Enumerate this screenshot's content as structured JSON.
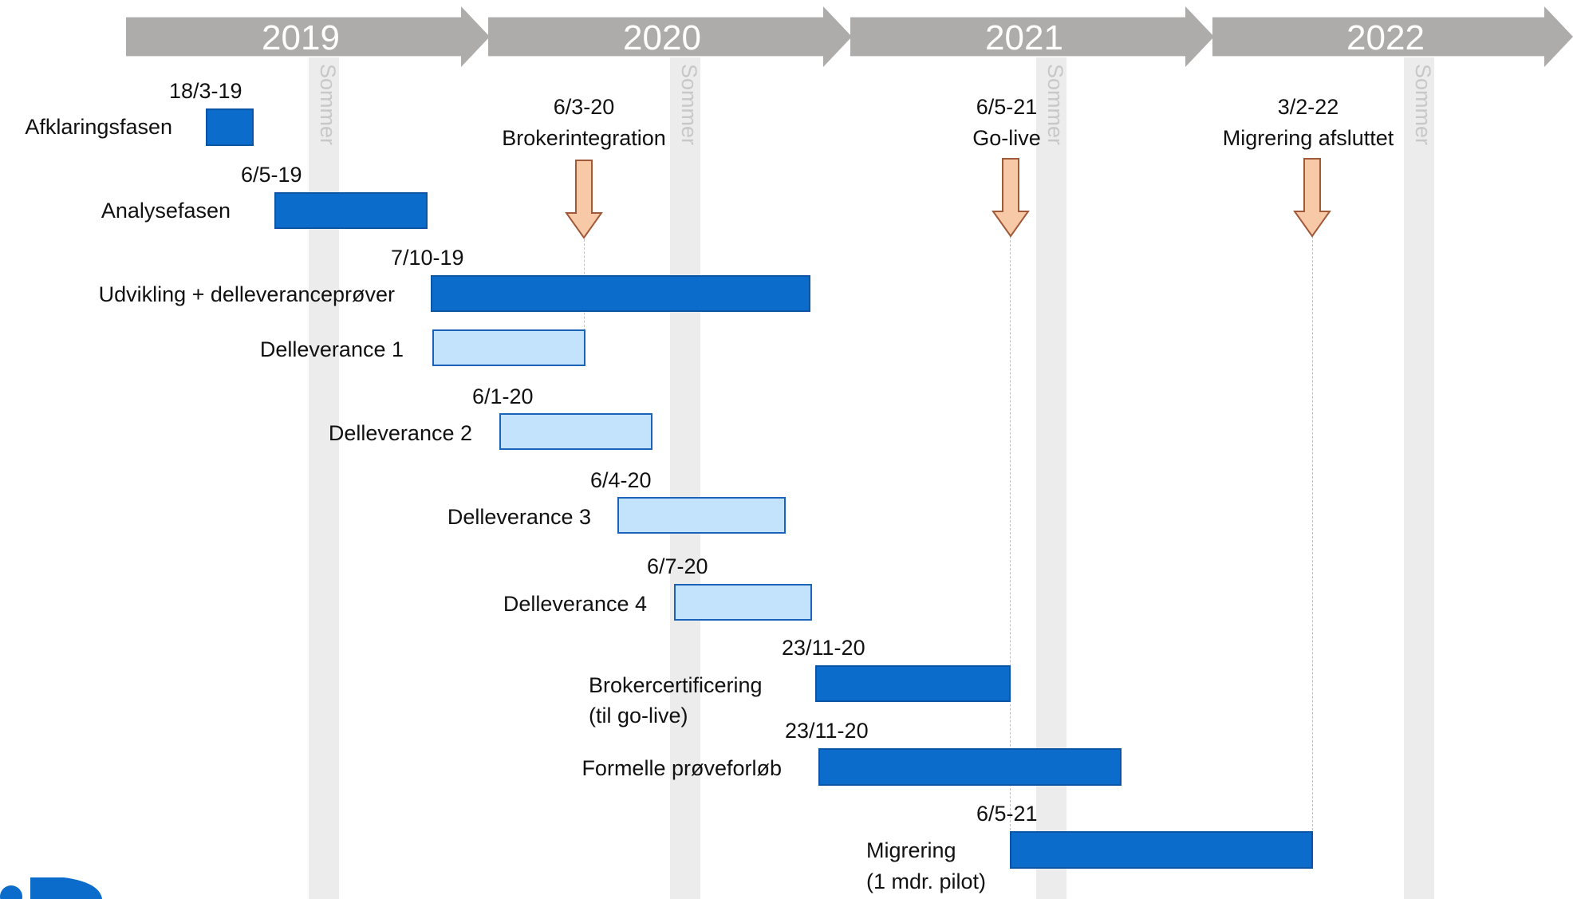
{
  "years": [
    "2019",
    "2020",
    "2021",
    "2022"
  ],
  "summer_label": "Sommer",
  "colors": {
    "arrow_gray": "#aeabab",
    "phase_dark": "#0b6ccc",
    "phase_light": "#c3e2fb",
    "milestone": "#f7c9a6"
  },
  "milestones": [
    {
      "date": "6/3-20",
      "label": "Brokerintegration"
    },
    {
      "date": "6/5-21",
      "label": "Go-live"
    },
    {
      "date": "3/2-22",
      "label": "Migrering afsluttet"
    }
  ],
  "phases": [
    {
      "date": "18/3-19",
      "label": "Afklaringsfasen"
    },
    {
      "date": "6/5-19",
      "label": "Analysefasen"
    },
    {
      "date": "7/10-19",
      "label": "Udvikling + delleveranceprøver"
    },
    {
      "date": "",
      "label": "Delleverance 1"
    },
    {
      "date": "6/1-20",
      "label": "Delleverance 2"
    },
    {
      "date": "6/4-20",
      "label": "Delleverance 3"
    },
    {
      "date": "6/7-20",
      "label": "Delleverance 4"
    },
    {
      "date": "23/11-20",
      "label": "Brokercertificering",
      "label2": "(til go-live)"
    },
    {
      "date": "23/11-20",
      "label": "Formelle prøveforløb"
    },
    {
      "date": "6/5-21",
      "label": "Migrering",
      "label2": "(1 mdr. pilot)"
    }
  ]
}
